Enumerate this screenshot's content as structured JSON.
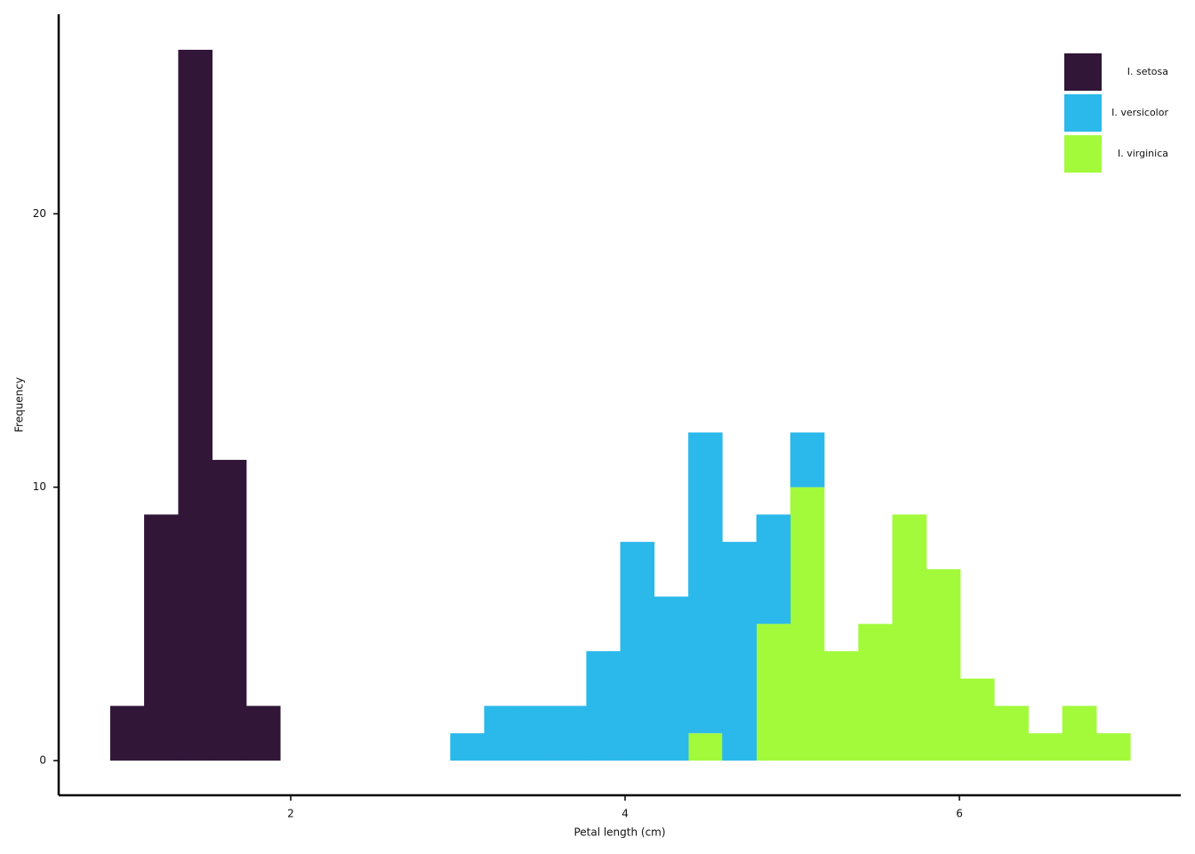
{
  "chart_data": {
    "type": "histogram",
    "stacked": true,
    "x_label": "Petal length (cm)",
    "y_label": "Frequency",
    "bins": [
      0.92,
      1.123,
      1.327,
      1.53,
      1.734,
      1.937,
      2.14,
      2.344,
      2.547,
      2.751,
      2.954,
      3.157,
      3.361,
      3.564,
      3.768,
      3.971,
      4.174,
      4.378,
      4.581,
      4.785,
      4.988,
      5.191,
      5.395,
      5.598,
      5.802,
      6.005,
      6.208,
      6.412,
      6.615,
      6.819,
      7.022
    ],
    "series": [
      {
        "name": "I. setosa",
        "color": "#311638",
        "values": [
          2,
          9,
          26,
          11,
          2,
          0,
          0,
          0,
          0,
          0,
          0,
          0,
          0,
          0,
          0,
          0,
          0,
          0,
          0,
          0,
          0,
          0,
          0,
          0,
          0,
          0,
          0,
          0,
          0,
          0
        ]
      },
      {
        "name": "I. versicolor",
        "color": "#2bb8ea",
        "values": [
          0,
          0,
          0,
          0,
          0,
          0,
          0,
          0,
          0,
          0,
          1,
          2,
          2,
          2,
          4,
          8,
          6,
          11,
          8,
          4,
          2,
          0,
          0,
          0,
          0,
          0,
          0,
          0,
          0,
          0
        ]
      },
      {
        "name": "I. virginica",
        "color": "#a2fa3b",
        "values": [
          0,
          0,
          0,
          0,
          0,
          0,
          0,
          0,
          0,
          0,
          0,
          0,
          0,
          0,
          0,
          0,
          0,
          1,
          0,
          5,
          10,
          4,
          5,
          9,
          7,
          3,
          2,
          1,
          2,
          1
        ]
      }
    ],
    "xlim": [
      0.612,
      7.324
    ],
    "xticks": [
      2,
      4,
      6
    ],
    "ylim": [
      -1.27,
      27.3
    ],
    "yticks": [
      0,
      10,
      20
    ],
    "grid": false,
    "legend": "upper right"
  }
}
